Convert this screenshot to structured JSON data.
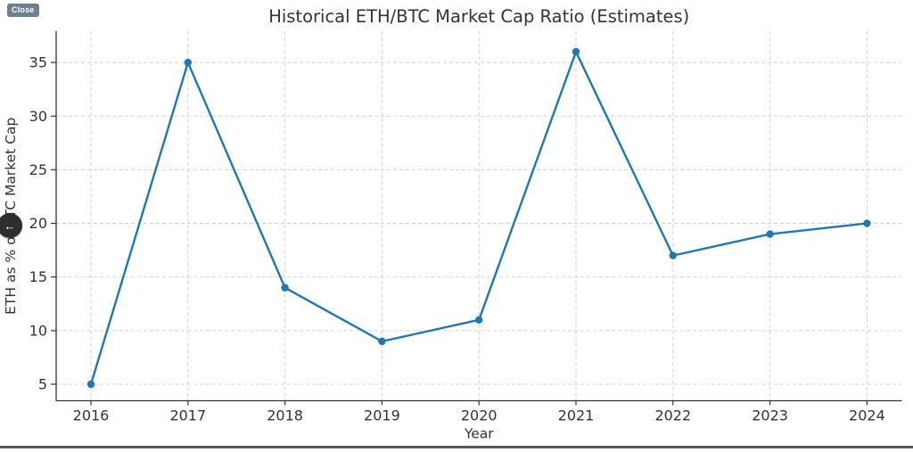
{
  "overlay": {
    "close_button": {
      "label": "Close"
    },
    "back_button": {
      "glyph": "←"
    }
  },
  "chart_data": {
    "type": "line",
    "title": "Historical ETH/BTC Market Cap Ratio (Estimates)",
    "xlabel": "Year",
    "ylabel": "ETH as % of BTC Market Cap",
    "x": [
      2016,
      2017,
      2018,
      2019,
      2020,
      2021,
      2022,
      2023,
      2024
    ],
    "series": [
      {
        "name": "ETH as % of BTC Market Cap",
        "values": [
          5,
          35,
          14,
          9,
          11,
          36,
          17,
          19,
          20
        ]
      }
    ],
    "xticks": [
      2016,
      2017,
      2018,
      2019,
      2020,
      2021,
      2022,
      2023,
      2024
    ],
    "yticks": [
      5,
      10,
      15,
      20,
      25,
      30,
      35
    ],
    "xlim": [
      2015.6,
      2024.4
    ],
    "ylim": [
      3.45,
      37.55
    ],
    "grid": true,
    "grid_linestyle": "dashed",
    "legend_position": "none",
    "line_color": "#1f77b4",
    "marker": "circle"
  },
  "colors": {
    "line": "#1f77b4",
    "grid": "#cccccc",
    "axis": "#333333",
    "text": "#333333",
    "close_button_bg": "#6d8091",
    "back_button_bg": "#2e2e31",
    "bottom_divider": "#57585a"
  }
}
